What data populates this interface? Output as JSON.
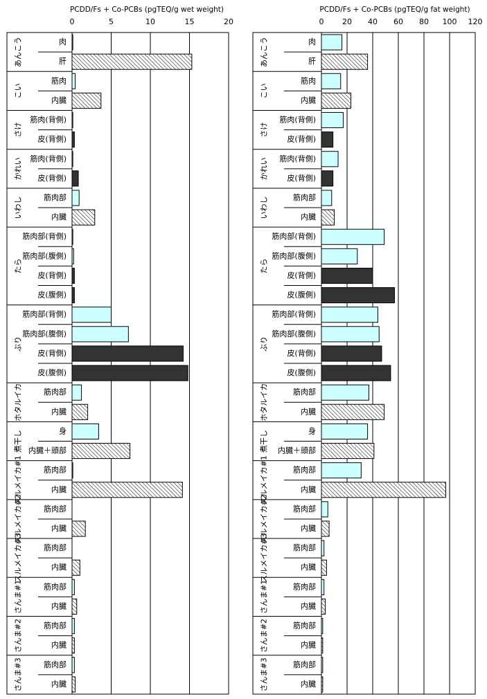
{
  "chart_data": [
    {
      "type": "bar",
      "title": "PCDD/Fs + Co-PCBs (pgTEQ/g wet weight)",
      "xlim": [
        0,
        20
      ],
      "xticks": [
        0,
        5,
        10,
        15,
        20
      ],
      "grid": true,
      "groups": [
        {
          "name": "あんこう",
          "categories": [
            "肉",
            "肝"
          ],
          "values": [
            0.1,
            15.3
          ],
          "fills": [
            "#ccffff",
            "hatch"
          ]
        },
        {
          "name": "こい",
          "categories": [
            "筋肉",
            "内臓"
          ],
          "values": [
            0.4,
            3.7
          ],
          "fills": [
            "#ccffff",
            "hatch"
          ]
        },
        {
          "name": "さけ",
          "categories": [
            "筋肉(背側)",
            "皮(背側)"
          ],
          "values": [
            0.1,
            0.3
          ],
          "fills": [
            "#ccffff",
            "#333333"
          ]
        },
        {
          "name": "かれい",
          "categories": [
            "筋肉(背側)",
            "皮(背側)"
          ],
          "values": [
            0.1,
            0.8
          ],
          "fills": [
            "#ccffff",
            "#333333"
          ]
        },
        {
          "name": "いわし",
          "categories": [
            "筋肉部",
            "内臓"
          ],
          "values": [
            0.9,
            2.9
          ],
          "fills": [
            "#ccffff",
            "hatch"
          ]
        },
        {
          "name": "たら",
          "categories": [
            "筋肉部(背側)",
            "筋肉部(腹側)",
            "皮(背側)",
            "皮(腹側)"
          ],
          "values": [
            0.1,
            0.2,
            0.3,
            0.3
          ],
          "fills": [
            "#ccffff",
            "#ccffff",
            "#333333",
            "#333333"
          ]
        },
        {
          "name": "ぶり",
          "categories": [
            "筋肉部(背側)",
            "筋肉部(腹側)",
            "皮(背側)",
            "皮(腹側)"
          ],
          "values": [
            5.0,
            7.2,
            14.2,
            14.8
          ],
          "fills": [
            "#ccffff",
            "#ccffff",
            "#333333",
            "#333333"
          ]
        },
        {
          "name": "ホタルイカ",
          "categories": [
            "筋肉部",
            "内臓"
          ],
          "values": [
            1.2,
            2.0
          ],
          "fills": [
            "#ccffff",
            "hatch"
          ]
        },
        {
          "name": "煮干し",
          "categories": [
            "身",
            "内臓＋頭部"
          ],
          "values": [
            3.4,
            7.4
          ],
          "fills": [
            "#ccffff",
            "hatch"
          ]
        },
        {
          "name": "スルメイカ#1",
          "categories": [
            "筋肉部",
            "内臓"
          ],
          "values": [
            0.1,
            14.1
          ],
          "fills": [
            "#ccffff",
            "hatch"
          ]
        },
        {
          "name": "スルメイカ#2",
          "categories": [
            "筋肉部",
            "内臓"
          ],
          "values": [
            0.0,
            1.7
          ],
          "fills": [
            "#ccffff",
            "hatch"
          ]
        },
        {
          "name": "スルメイカ#3",
          "categories": [
            "筋肉部",
            "内臓"
          ],
          "values": [
            0.0,
            1.0
          ],
          "fills": [
            "#ccffff",
            "hatch"
          ]
        },
        {
          "name": "さんま#1",
          "categories": [
            "筋肉部",
            "内臓"
          ],
          "values": [
            0.3,
            0.6
          ],
          "fills": [
            "#ccffff",
            "hatch"
          ]
        },
        {
          "name": "さんま#2",
          "categories": [
            "筋肉部",
            "内臓"
          ],
          "values": [
            0.3,
            0.3
          ],
          "fills": [
            "#ccffff",
            "hatch"
          ]
        },
        {
          "name": "さんま#3",
          "categories": [
            "筋肉部",
            "内臓"
          ],
          "values": [
            0.3,
            0.4
          ],
          "fills": [
            "#ccffff",
            "hatch"
          ]
        }
      ]
    },
    {
      "type": "bar",
      "title": "PCDD/Fs + Co-PCBs (pgTEQ/g fat weight)",
      "xlim": [
        0,
        120
      ],
      "xticks": [
        0,
        20,
        40,
        60,
        80,
        100,
        120
      ],
      "grid": true,
      "groups": [
        {
          "name": "あんこう",
          "categories": [
            "肉",
            "肝"
          ],
          "values": [
            16,
            36
          ],
          "fills": [
            "#ccffff",
            "hatch"
          ]
        },
        {
          "name": "こい",
          "categories": [
            "筋肉",
            "内臓"
          ],
          "values": [
            15,
            23
          ],
          "fills": [
            "#ccffff",
            "hatch"
          ]
        },
        {
          "name": "さけ",
          "categories": [
            "筋肉(背側)",
            "皮(背側)"
          ],
          "values": [
            17,
            9
          ],
          "fills": [
            "#ccffff",
            "#333333"
          ]
        },
        {
          "name": "かれい",
          "categories": [
            "筋肉(背側)",
            "皮(背側)"
          ],
          "values": [
            13,
            9
          ],
          "fills": [
            "#ccffff",
            "#333333"
          ]
        },
        {
          "name": "いわし",
          "categories": [
            "筋肉部",
            "内臓"
          ],
          "values": [
            8,
            10
          ],
          "fills": [
            "#ccffff",
            "hatch"
          ]
        },
        {
          "name": "たら",
          "categories": [
            "筋肉部(背側)",
            "筋肉部(腹側)",
            "皮(背側)",
            "皮(腹側)"
          ],
          "values": [
            49,
            28,
            40,
            57
          ],
          "fills": [
            "#ccffff",
            "#ccffff",
            "#333333",
            "#333333"
          ]
        },
        {
          "name": "ぶり",
          "categories": [
            "筋肉部(背側)",
            "筋肉部(腹側)",
            "皮(背側)",
            "皮(腹側)"
          ],
          "values": [
            44,
            45,
            47,
            54
          ],
          "fills": [
            "#ccffff",
            "#ccffff",
            "#333333",
            "#333333"
          ]
        },
        {
          "name": "ホタルイカ",
          "categories": [
            "筋肉部",
            "内臓"
          ],
          "values": [
            37,
            49
          ],
          "fills": [
            "#ccffff",
            "hatch"
          ]
        },
        {
          "name": "煮干し",
          "categories": [
            "身",
            "内臓＋頭部"
          ],
          "values": [
            36,
            41
          ],
          "fills": [
            "#ccffff",
            "hatch"
          ]
        },
        {
          "name": "スルメイカ#1",
          "categories": [
            "筋肉部",
            "内臓"
          ],
          "values": [
            31,
            97
          ],
          "fills": [
            "#ccffff",
            "hatch"
          ]
        },
        {
          "name": "スルメイカ#2",
          "categories": [
            "筋肉部",
            "内臓"
          ],
          "values": [
            5,
            6
          ],
          "fills": [
            "#ccffff",
            "hatch"
          ]
        },
        {
          "name": "スルメイカ#3",
          "categories": [
            "筋肉部",
            "内臓"
          ],
          "values": [
            2,
            4
          ],
          "fills": [
            "#ccffff",
            "hatch"
          ]
        },
        {
          "name": "さんま#1",
          "categories": [
            "筋肉部",
            "内臓"
          ],
          "values": [
            2,
            3
          ],
          "fills": [
            "#ccffff",
            "hatch"
          ]
        },
        {
          "name": "さんま#2",
          "categories": [
            "筋肉部",
            "内臓"
          ],
          "values": [
            1,
            1
          ],
          "fills": [
            "#ccffff",
            "hatch"
          ]
        },
        {
          "name": "さんま#3",
          "categories": [
            "筋肉部",
            "内臓"
          ],
          "values": [
            1,
            1
          ],
          "fills": [
            "#ccffff",
            "hatch"
          ]
        }
      ]
    }
  ]
}
